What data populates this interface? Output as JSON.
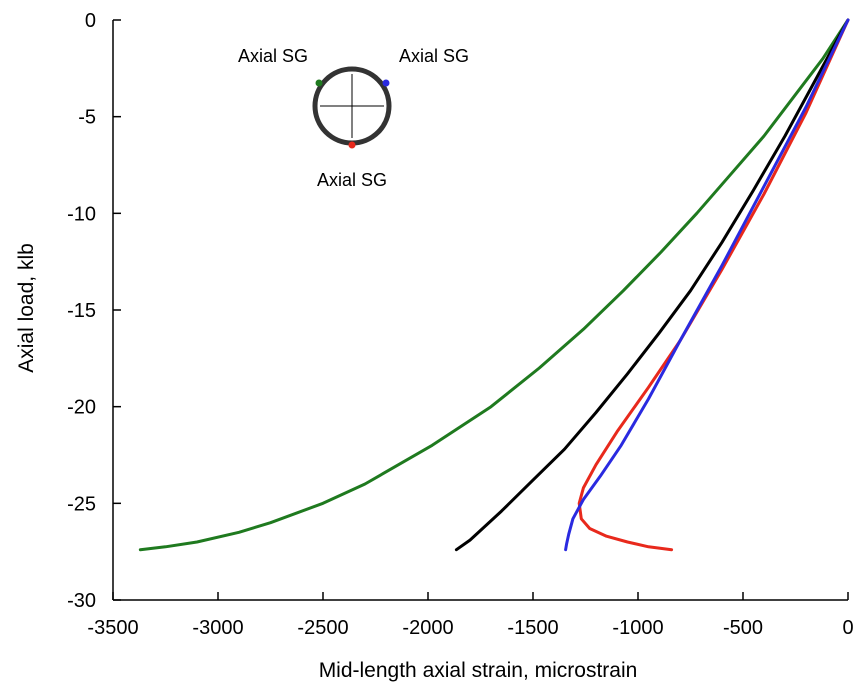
{
  "chart_data": {
    "type": "line",
    "title": "",
    "xlabel": "Mid-length axial strain, microstrain",
    "ylabel": "Axial load, klb",
    "xlim": [
      -3500,
      0
    ],
    "ylim": [
      -30,
      0
    ],
    "xticks": [
      -3500,
      -3000,
      -2500,
      -2000,
      -1500,
      -1000,
      -500,
      0
    ],
    "yticks": [
      0,
      -5,
      -10,
      -15,
      -20,
      -25,
      -30
    ],
    "grid": false,
    "series": [
      {
        "color": "#1f7a1f",
        "points": [
          [
            0,
            0
          ],
          [
            -120,
            -2
          ],
          [
            -260,
            -4
          ],
          [
            -400,
            -6
          ],
          [
            -560,
            -8
          ],
          [
            -720,
            -10
          ],
          [
            -890,
            -12
          ],
          [
            -1070,
            -14
          ],
          [
            -1260,
            -16
          ],
          [
            -1470,
            -18
          ],
          [
            -1700,
            -20
          ],
          [
            -1980,
            -22
          ],
          [
            -2300,
            -24
          ],
          [
            -2500,
            -25
          ],
          [
            -2750,
            -26
          ],
          [
            -2900,
            -26.5
          ],
          [
            -3100,
            -27
          ],
          [
            -3250,
            -27.25
          ],
          [
            -3370,
            -27.4
          ]
        ]
      },
      {
        "color": "#000000",
        "points": [
          [
            0,
            0
          ],
          [
            -150,
            -3
          ],
          [
            -300,
            -6
          ],
          [
            -450,
            -8.8
          ],
          [
            -600,
            -11.5
          ],
          [
            -750,
            -14
          ],
          [
            -900,
            -16.2
          ],
          [
            -1050,
            -18.3
          ],
          [
            -1200,
            -20.3
          ],
          [
            -1350,
            -22.2
          ],
          [
            -1500,
            -23.8
          ],
          [
            -1650,
            -25.4
          ],
          [
            -1800,
            -26.9
          ],
          [
            -1865,
            -27.4
          ]
        ]
      },
      {
        "color": "#e8291c",
        "points": [
          [
            0,
            0
          ],
          [
            -200,
            -4.8
          ],
          [
            -400,
            -9
          ],
          [
            -600,
            -12.9
          ],
          [
            -800,
            -16.6
          ],
          [
            -950,
            -19
          ],
          [
            -1100,
            -21.3
          ],
          [
            -1200,
            -23
          ],
          [
            -1260,
            -24.2
          ],
          [
            -1280,
            -25
          ],
          [
            -1270,
            -25.8
          ],
          [
            -1230,
            -26.3
          ],
          [
            -1150,
            -26.7
          ],
          [
            -1050,
            -27
          ],
          [
            -950,
            -27.25
          ],
          [
            -840,
            -27.4
          ]
        ]
      },
      {
        "color": "#2a2ae0",
        "points": [
          [
            0,
            0
          ],
          [
            -200,
            -4.5
          ],
          [
            -400,
            -8.6
          ],
          [
            -600,
            -12.7
          ],
          [
            -800,
            -16.6
          ],
          [
            -950,
            -19.6
          ],
          [
            -1080,
            -22
          ],
          [
            -1180,
            -23.6
          ],
          [
            -1260,
            -24.8
          ],
          [
            -1310,
            -25.8
          ],
          [
            -1330,
            -26.6
          ],
          [
            -1340,
            -27.1
          ],
          [
            -1345,
            -27.4
          ]
        ]
      }
    ],
    "annotations": [
      {
        "text": "Axial SG",
        "marker_color": "#1f7a1f"
      },
      {
        "text": "Axial SG",
        "marker_color": "#2a2ae0"
      },
      {
        "text": "Axial SG",
        "marker_color": "#e8291c"
      }
    ]
  }
}
